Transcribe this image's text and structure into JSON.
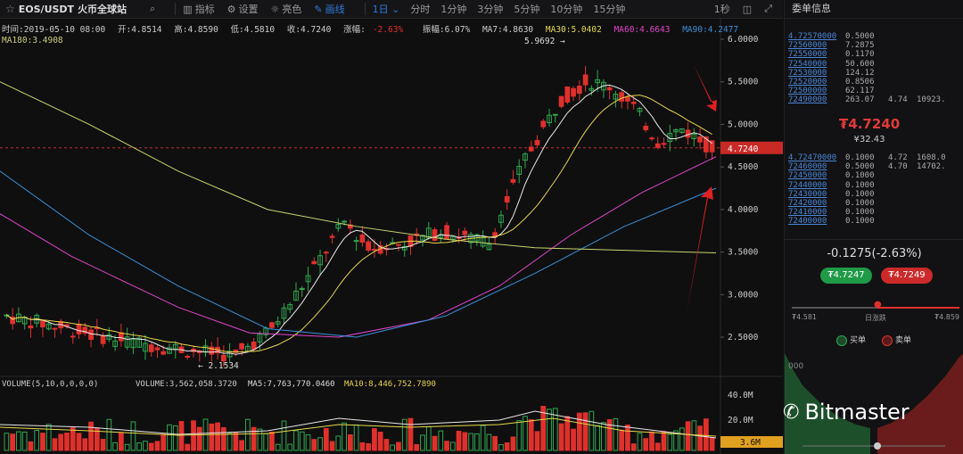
{
  "toolbar": {
    "pair": "EOS/USDT",
    "exchange": "火币全球站",
    "indicators": "指标",
    "settings": "设置",
    "theme": "亮色",
    "draw": "画线",
    "period": "1日",
    "intervals": [
      "分时",
      "1分钟",
      "3分钟",
      "5分钟",
      "10分钟",
      "15分钟"
    ],
    "refresh": "1秒"
  },
  "info_line": {
    "time": "时间:2019-05-10 08:00",
    "open": "开:4.8514",
    "high": "高:4.8590",
    "low": "低:4.5810",
    "close": "收:4.7240",
    "change_label": "涨幅:",
    "change_value": "-2.63%",
    "amp": "振幅:6.07%",
    "ma7": "MA7:4.8630",
    "ma30": "MA30:5.0402",
    "ma60": "MA60:4.6643",
    "ma90": "MA90:4.2477"
  },
  "ma180": "MA180:3.4908",
  "price_axis": [
    "6.0000",
    "5.5000",
    "5.0000",
    "4.7240",
    "4.5000",
    "4.0000",
    "3.5000",
    "3.0000",
    "2.5000"
  ],
  "annotations": {
    "high": "5.9692 →",
    "low": "← 2.1534"
  },
  "volume_info": {
    "label": "VOLUME(5,10,0,0,0,0)",
    "volume": "VOLUME:3,562,058.3720",
    "ma5": "MA5:7,763,770.0460",
    "ma10": "MA10:8,446,752.7890"
  },
  "volume_axis": [
    "40.0M",
    "20.0M",
    "3.6M"
  ],
  "colors": {
    "up": "#2fa84f",
    "down": "#e0302c",
    "ma7": "#e8e8e8",
    "ma30": "#e6d84a",
    "ma60": "#e046c8",
    "ma90": "#3a8fd8",
    "ma180": "#c8d46a"
  },
  "panel": {
    "title": "委单信息",
    "asks": [
      {
        "price": "4.72570000",
        "amount": "0.5000",
        "total": "",
        "sum": ""
      },
      {
        "price": "72560000",
        "amount": "7.2875",
        "total": "",
        "sum": ""
      },
      {
        "price": "72550000",
        "amount": "0.1170",
        "total": "",
        "sum": ""
      },
      {
        "price": "72540000",
        "amount": "50.600",
        "total": "",
        "sum": ""
      },
      {
        "price": "72530000",
        "amount": "124.12",
        "total": "",
        "sum": ""
      },
      {
        "price": "72520000",
        "amount": "0.8506",
        "total": "",
        "sum": ""
      },
      {
        "price": "72500000",
        "amount": "62.117",
        "total": "",
        "sum": ""
      },
      {
        "price": "72490000",
        "amount": "263.07",
        "total": "4.74",
        "sum": "10923."
      }
    ],
    "last_price": "₮4.7240",
    "last_price_cny": "¥32.43",
    "bids": [
      {
        "price": "4.72470000",
        "amount": "0.1000",
        "total": "4.72",
        "sum": "1608.0"
      },
      {
        "price": "72460000",
        "amount": "0.5000",
        "total": "4.70",
        "sum": "14702."
      },
      {
        "price": "72450000",
        "amount": "0.1000",
        "total": "",
        "sum": ""
      },
      {
        "price": "72440000",
        "amount": "0.1000",
        "total": "",
        "sum": ""
      },
      {
        "price": "72430000",
        "amount": "0.1000",
        "total": "",
        "sum": ""
      },
      {
        "price": "72420000",
        "amount": "0.1000",
        "total": "",
        "sum": ""
      },
      {
        "price": "72410000",
        "amount": "0.1000",
        "total": "",
        "sum": ""
      },
      {
        "price": "72400000",
        "amount": "0.1000",
        "total": "",
        "sum": ""
      }
    ],
    "change": "-0.1275(-2.63%)",
    "buy_price": "₮4.7247",
    "sell_price": "₮4.7249",
    "range_low": "₮4.581",
    "range_label": "日涨跌",
    "range_high": "₮4.859",
    "legend_buy": "买单",
    "legend_sell": "卖单",
    "depth_label": "000"
  },
  "watermark": "Bitmaster"
}
